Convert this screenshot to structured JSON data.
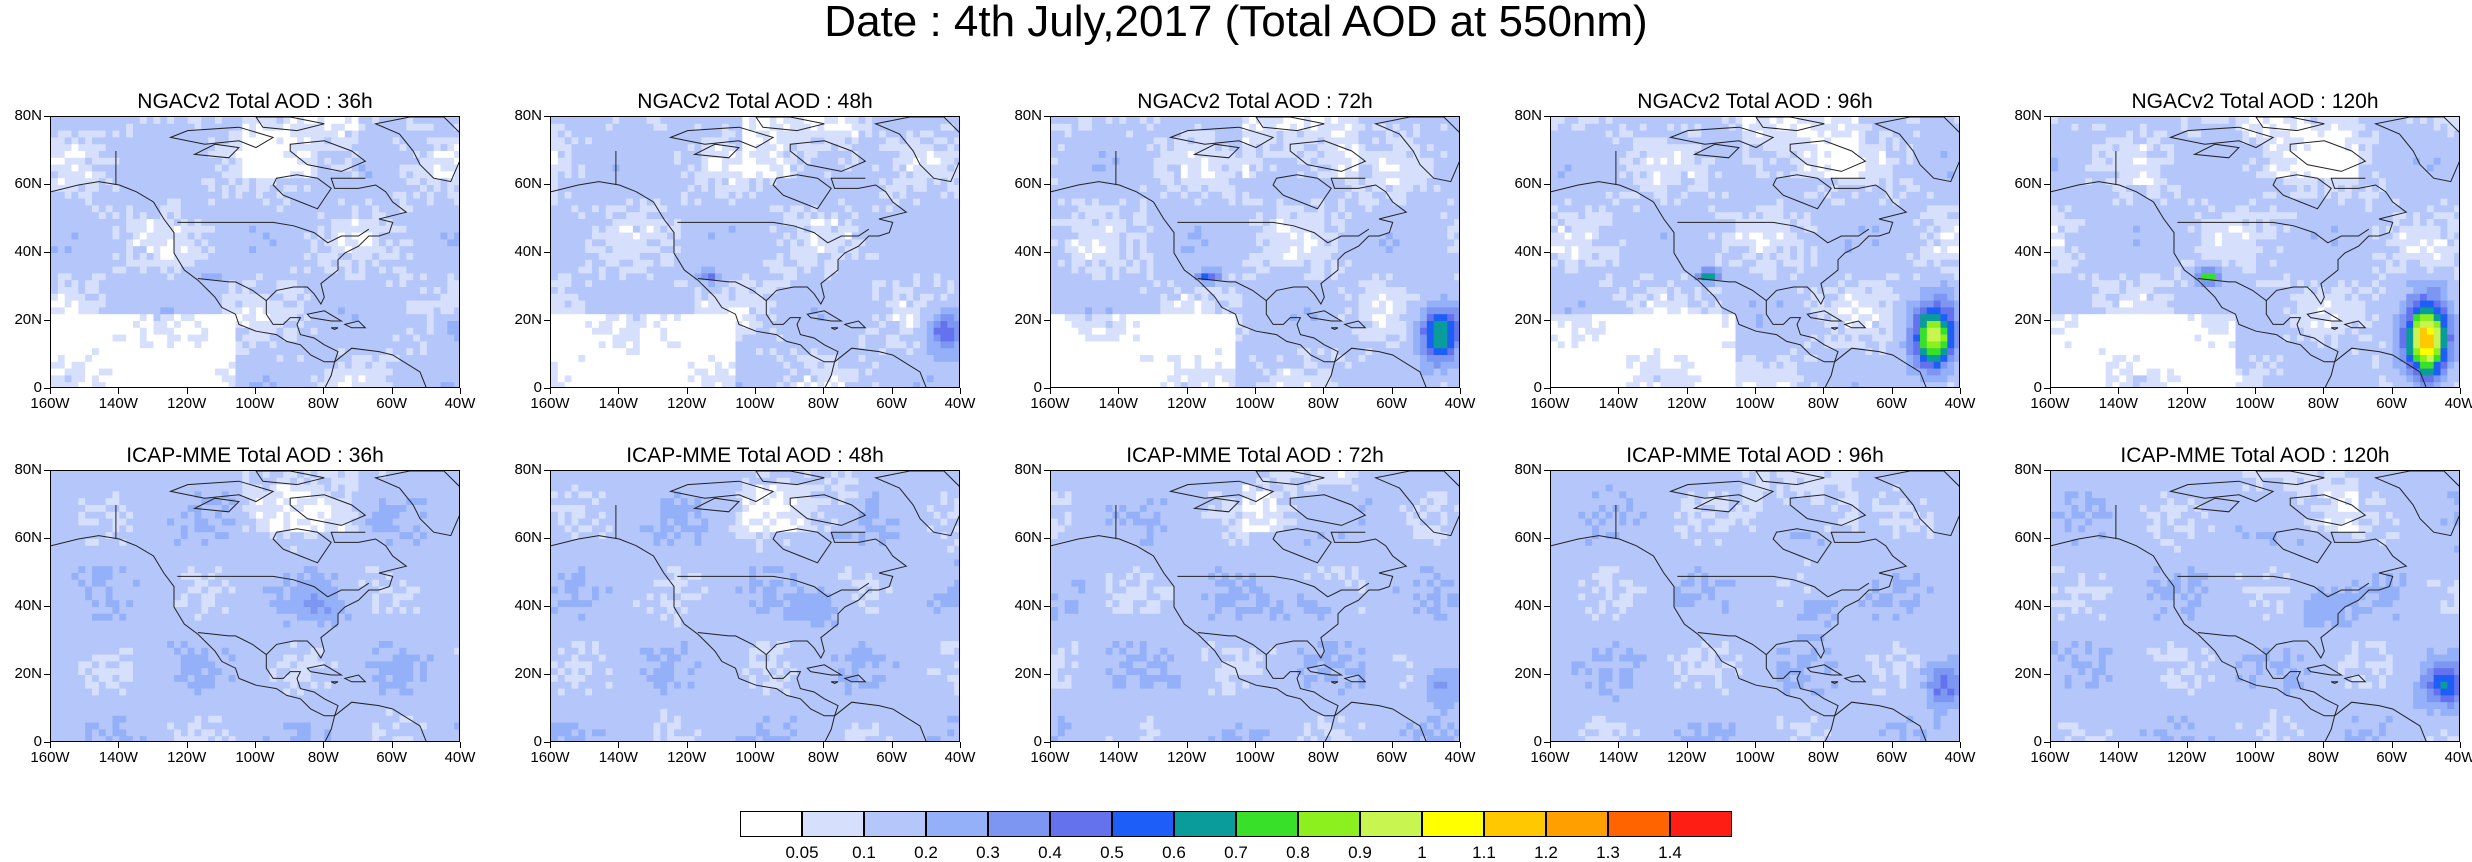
{
  "title": "Date : 4th July,2017 (Total AOD at 550nm)",
  "lat_ticks": [
    "80N",
    "60N",
    "40N",
    "20N",
    "0"
  ],
  "lon_ticks": [
    "160W",
    "140W",
    "120W",
    "100W",
    "80W",
    "60W",
    "40W"
  ],
  "panels": [
    {
      "title": "NGACv2 Total AOD : 36h",
      "model": "NGACv2",
      "lead": "36h"
    },
    {
      "title": "NGACv2 Total AOD : 48h",
      "model": "NGACv2",
      "lead": "48h"
    },
    {
      "title": "NGACv2 Total AOD : 72h",
      "model": "NGACv2",
      "lead": "72h"
    },
    {
      "title": "NGACv2 Total AOD : 96h",
      "model": "NGACv2",
      "lead": "96h"
    },
    {
      "title": "NGACv2 Total AOD : 120h",
      "model": "NGACv2",
      "lead": "120h"
    },
    {
      "title": "ICAP-MME Total AOD : 36h",
      "model": "ICAP-MME",
      "lead": "36h"
    },
    {
      "title": "ICAP-MME Total AOD : 48h",
      "model": "ICAP-MME",
      "lead": "48h"
    },
    {
      "title": "ICAP-MME Total AOD : 72h",
      "model": "ICAP-MME",
      "lead": "72h"
    },
    {
      "title": "ICAP-MME Total AOD : 96h",
      "model": "ICAP-MME",
      "lead": "96h"
    },
    {
      "title": "ICAP-MME Total AOD : 120h",
      "model": "ICAP-MME",
      "lead": "120h"
    }
  ],
  "colorbar": {
    "labels": [
      "0.05",
      "0.1",
      "0.2",
      "0.3",
      "0.4",
      "0.5",
      "0.6",
      "0.7",
      "0.8",
      "0.9",
      "1",
      "1.1",
      "1.2",
      "1.3",
      "1.4"
    ],
    "colors": [
      "#ffffff",
      "#d6e0fc",
      "#b4c6fa",
      "#94b0f8",
      "#7d96f2",
      "#6472ee",
      "#1e5ef8",
      "#0a9b9b",
      "#38e02a",
      "#8cf01e",
      "#c8f550",
      "#ffff00",
      "#ffc800",
      "#ffa000",
      "#ff6400",
      "#ff1e14"
    ]
  }
}
